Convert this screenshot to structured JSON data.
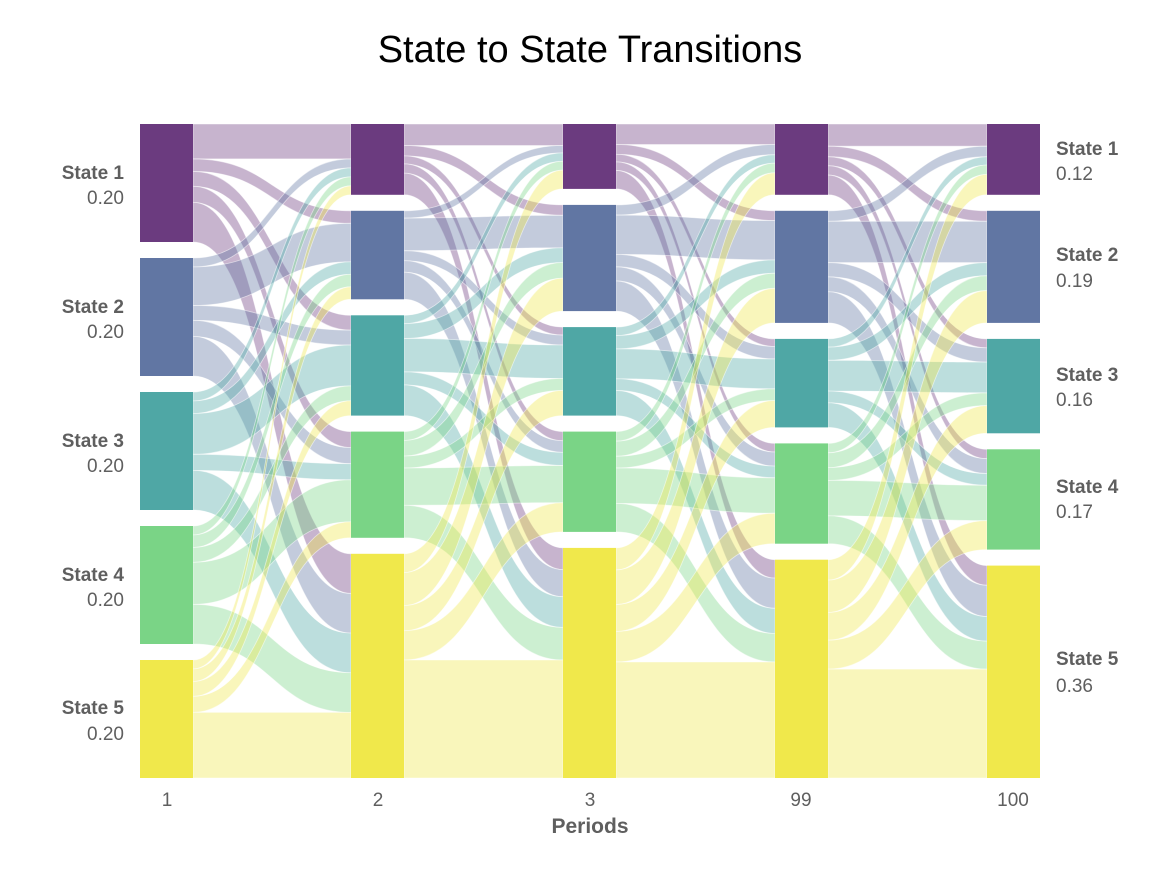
{
  "chart_data": {
    "type": "sankey",
    "title": "State to State Transitions",
    "xlabel": "Periods",
    "ylabel": "",
    "periods": [
      "1",
      "2",
      "3",
      "99",
      "100"
    ],
    "states": [
      "State 1",
      "State 2",
      "State 3",
      "State 4",
      "State 5"
    ],
    "state_colors": [
      "#6b3b7f",
      "#6176a3",
      "#4fa7a5",
      "#7ad486",
      "#f0e84b"
    ],
    "distributions": [
      [
        0.2,
        0.2,
        0.2,
        0.2,
        0.2
      ],
      [
        0.12,
        0.15,
        0.17,
        0.18,
        0.38
      ],
      [
        0.11,
        0.18,
        0.15,
        0.17,
        0.39
      ],
      [
        0.12,
        0.19,
        0.15,
        0.17,
        0.37
      ],
      [
        0.12,
        0.19,
        0.16,
        0.17,
        0.36
      ]
    ],
    "left_labels": {
      "names": [
        "State 1",
        "State 2",
        "State 3",
        "State 4",
        "State 5"
      ],
      "values": [
        "0.20",
        "0.20",
        "0.20",
        "0.20",
        "0.20"
      ]
    },
    "right_labels": {
      "names": [
        "State 1",
        "State 2",
        "State 3",
        "State 4",
        "State 5"
      ],
      "values": [
        "0.12",
        "0.19",
        "0.16",
        "0.17",
        "0.36"
      ]
    },
    "grid": false,
    "legend": "none"
  }
}
